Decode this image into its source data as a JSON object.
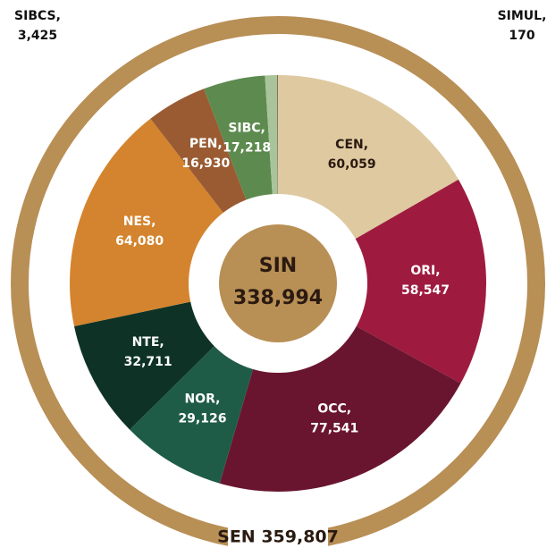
{
  "chart_data": {
    "type": "donut",
    "categories": [
      "CEN,",
      "ORI,",
      "OCC,",
      "NOR,",
      "NTE,",
      "NES,",
      "PEN,",
      "SIBC,",
      "SIBCS,",
      "SIMUL,"
    ],
    "values": [
      60059,
      58547,
      77541,
      29126,
      32711,
      64080,
      16930,
      17218,
      3425,
      170
    ],
    "value_labels": [
      "60,059",
      "58,547",
      "77,541",
      "29,126",
      "32,711",
      "64,080",
      "16,930",
      "17,218",
      "3,425",
      "170"
    ],
    "colors": [
      "#dfc9a0",
      "#9e1b3f",
      "#6a1530",
      "#1f5c48",
      "#0e3326",
      "#d4842e",
      "#9a5b33",
      "#5d8a4e",
      "#a9c49a",
      "#6b3a2a"
    ],
    "label_colors": [
      "#2a1a10",
      "#ffffff",
      "#ffffff",
      "#ffffff",
      "#ffffff",
      "#ffffff",
      "#ffffff",
      "#ffffff",
      "#111111",
      "#111111"
    ],
    "center_title": "SIN",
    "center_value": "338,994",
    "total_label": "SEN 359,807",
    "ring_color": "#b88f55"
  }
}
